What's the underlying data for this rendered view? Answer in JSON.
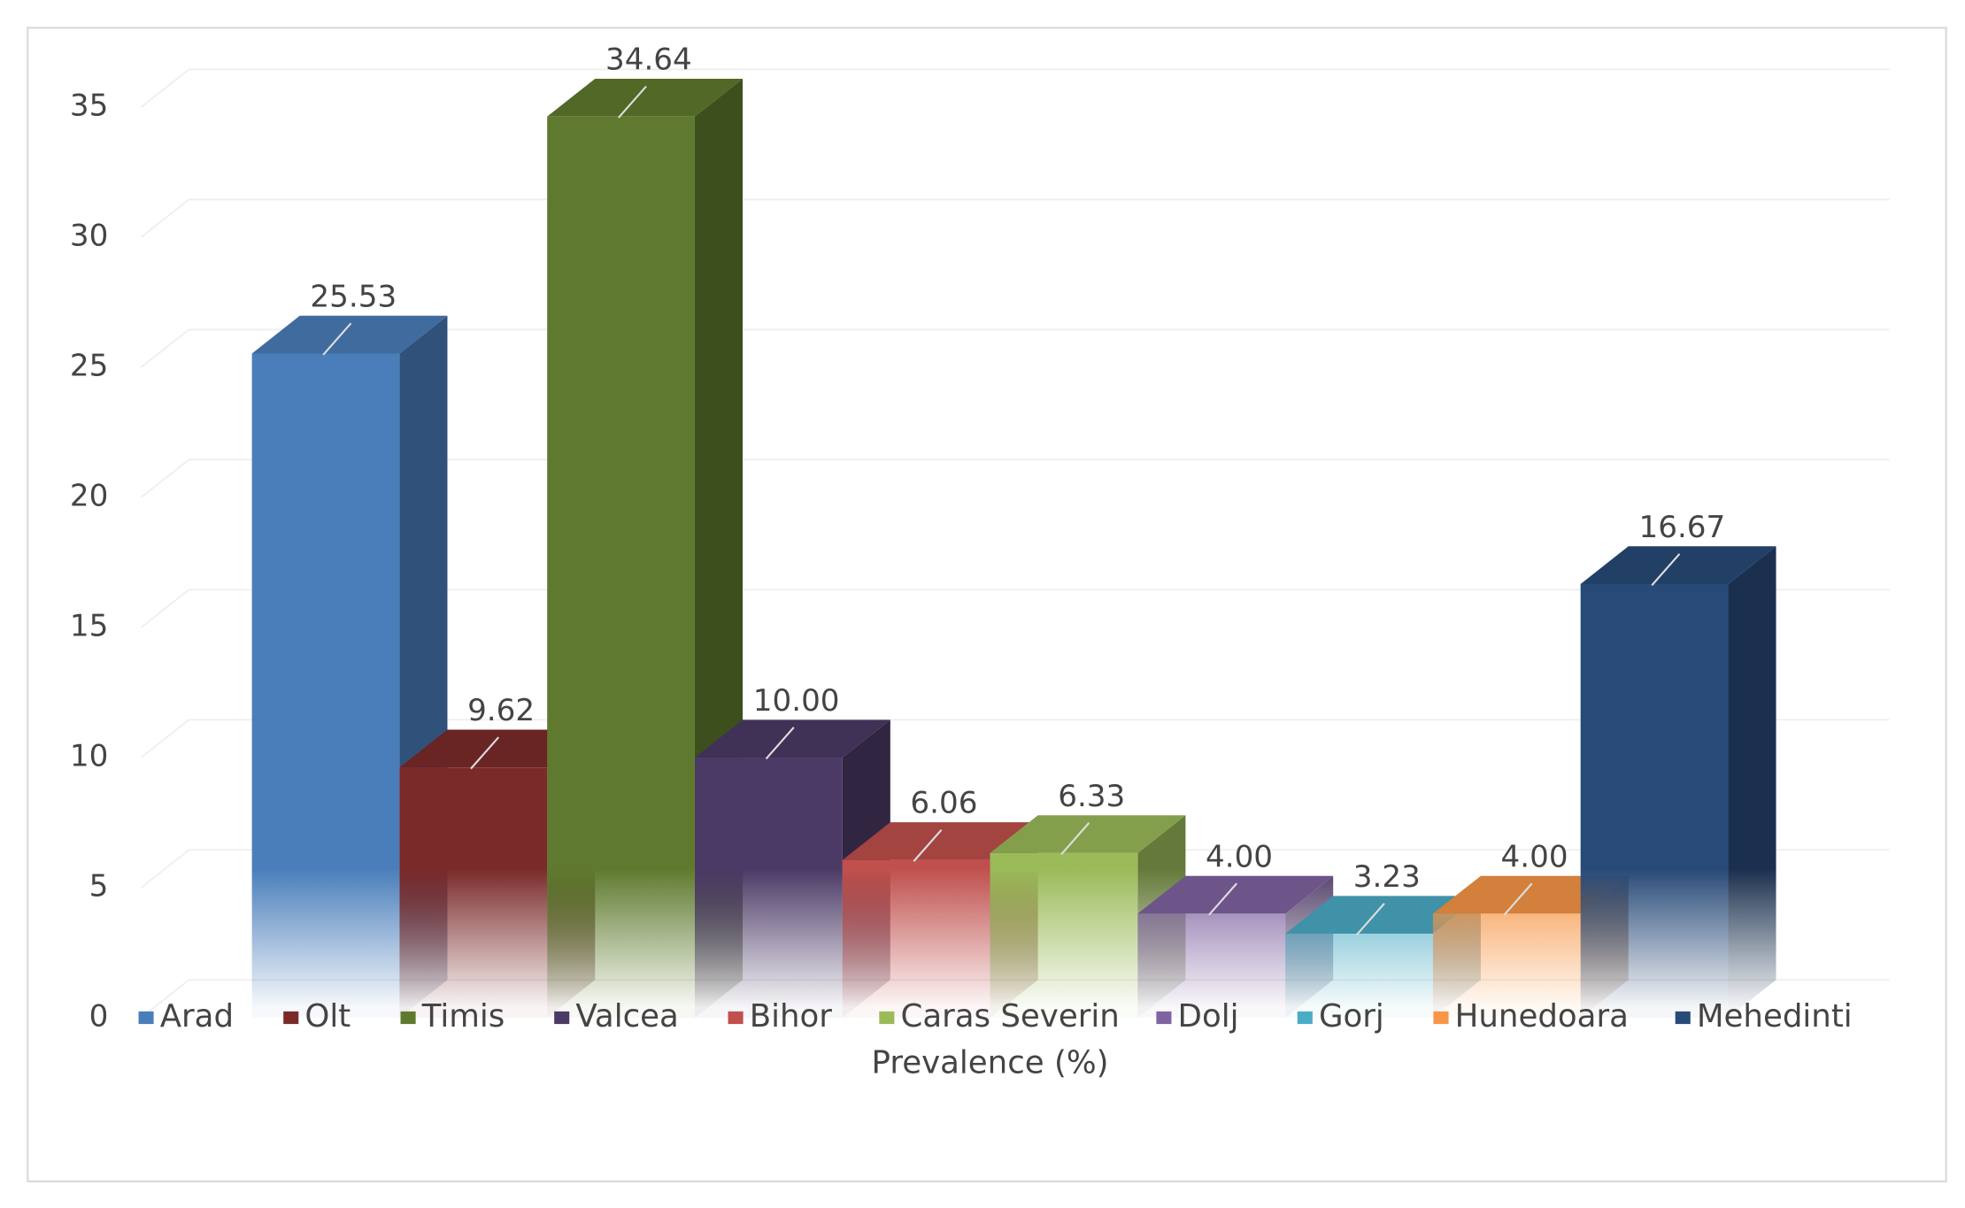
{
  "chart_data": {
    "type": "bar3d",
    "x_label": "Prevalence (%)",
    "categories": [
      null
    ],
    "series": [
      {
        "name": "Arad",
        "color": "#4a7ebb",
        "values": [
          25.53
        ],
        "value_labels": [
          "25.53"
        ]
      },
      {
        "name": "Olt",
        "color": "#7b2a2a",
        "values": [
          9.62
        ],
        "value_labels": [
          "9.62"
        ]
      },
      {
        "name": "Timis",
        "color": "#5f7a2e",
        "values": [
          34.64
        ],
        "value_labels": [
          "34.64"
        ]
      },
      {
        "name": "Valcea",
        "color": "#4b3a66",
        "values": [
          10.0
        ],
        "value_labels": [
          "10.00"
        ]
      },
      {
        "name": "Bihor",
        "color": "#c0504d",
        "values": [
          6.06
        ],
        "value_labels": [
          "6.06"
        ]
      },
      {
        "name": "Caras Severin",
        "color": "#9bbb59",
        "values": [
          6.33
        ],
        "value_labels": [
          "6.33"
        ]
      },
      {
        "name": "Dolj",
        "color": "#8064a2",
        "values": [
          4.0
        ],
        "value_labels": [
          "4.00"
        ]
      },
      {
        "name": "Gorj",
        "color": "#4bacc6",
        "values": [
          3.23
        ],
        "value_labels": [
          "3.23"
        ]
      },
      {
        "name": "Hunedoara",
        "color": "#f79646",
        "values": [
          4.0
        ],
        "value_labels": [
          "4.00"
        ]
      },
      {
        "name": "Mehedinti",
        "color": "#284a78",
        "values": [
          16.67
        ],
        "value_labels": [
          "16.67"
        ]
      }
    ],
    "ylim": [
      0,
      35
    ],
    "yticks": [
      0,
      5,
      10,
      15,
      20,
      25,
      30,
      35
    ],
    "grid": true,
    "legend": "bottom"
  }
}
